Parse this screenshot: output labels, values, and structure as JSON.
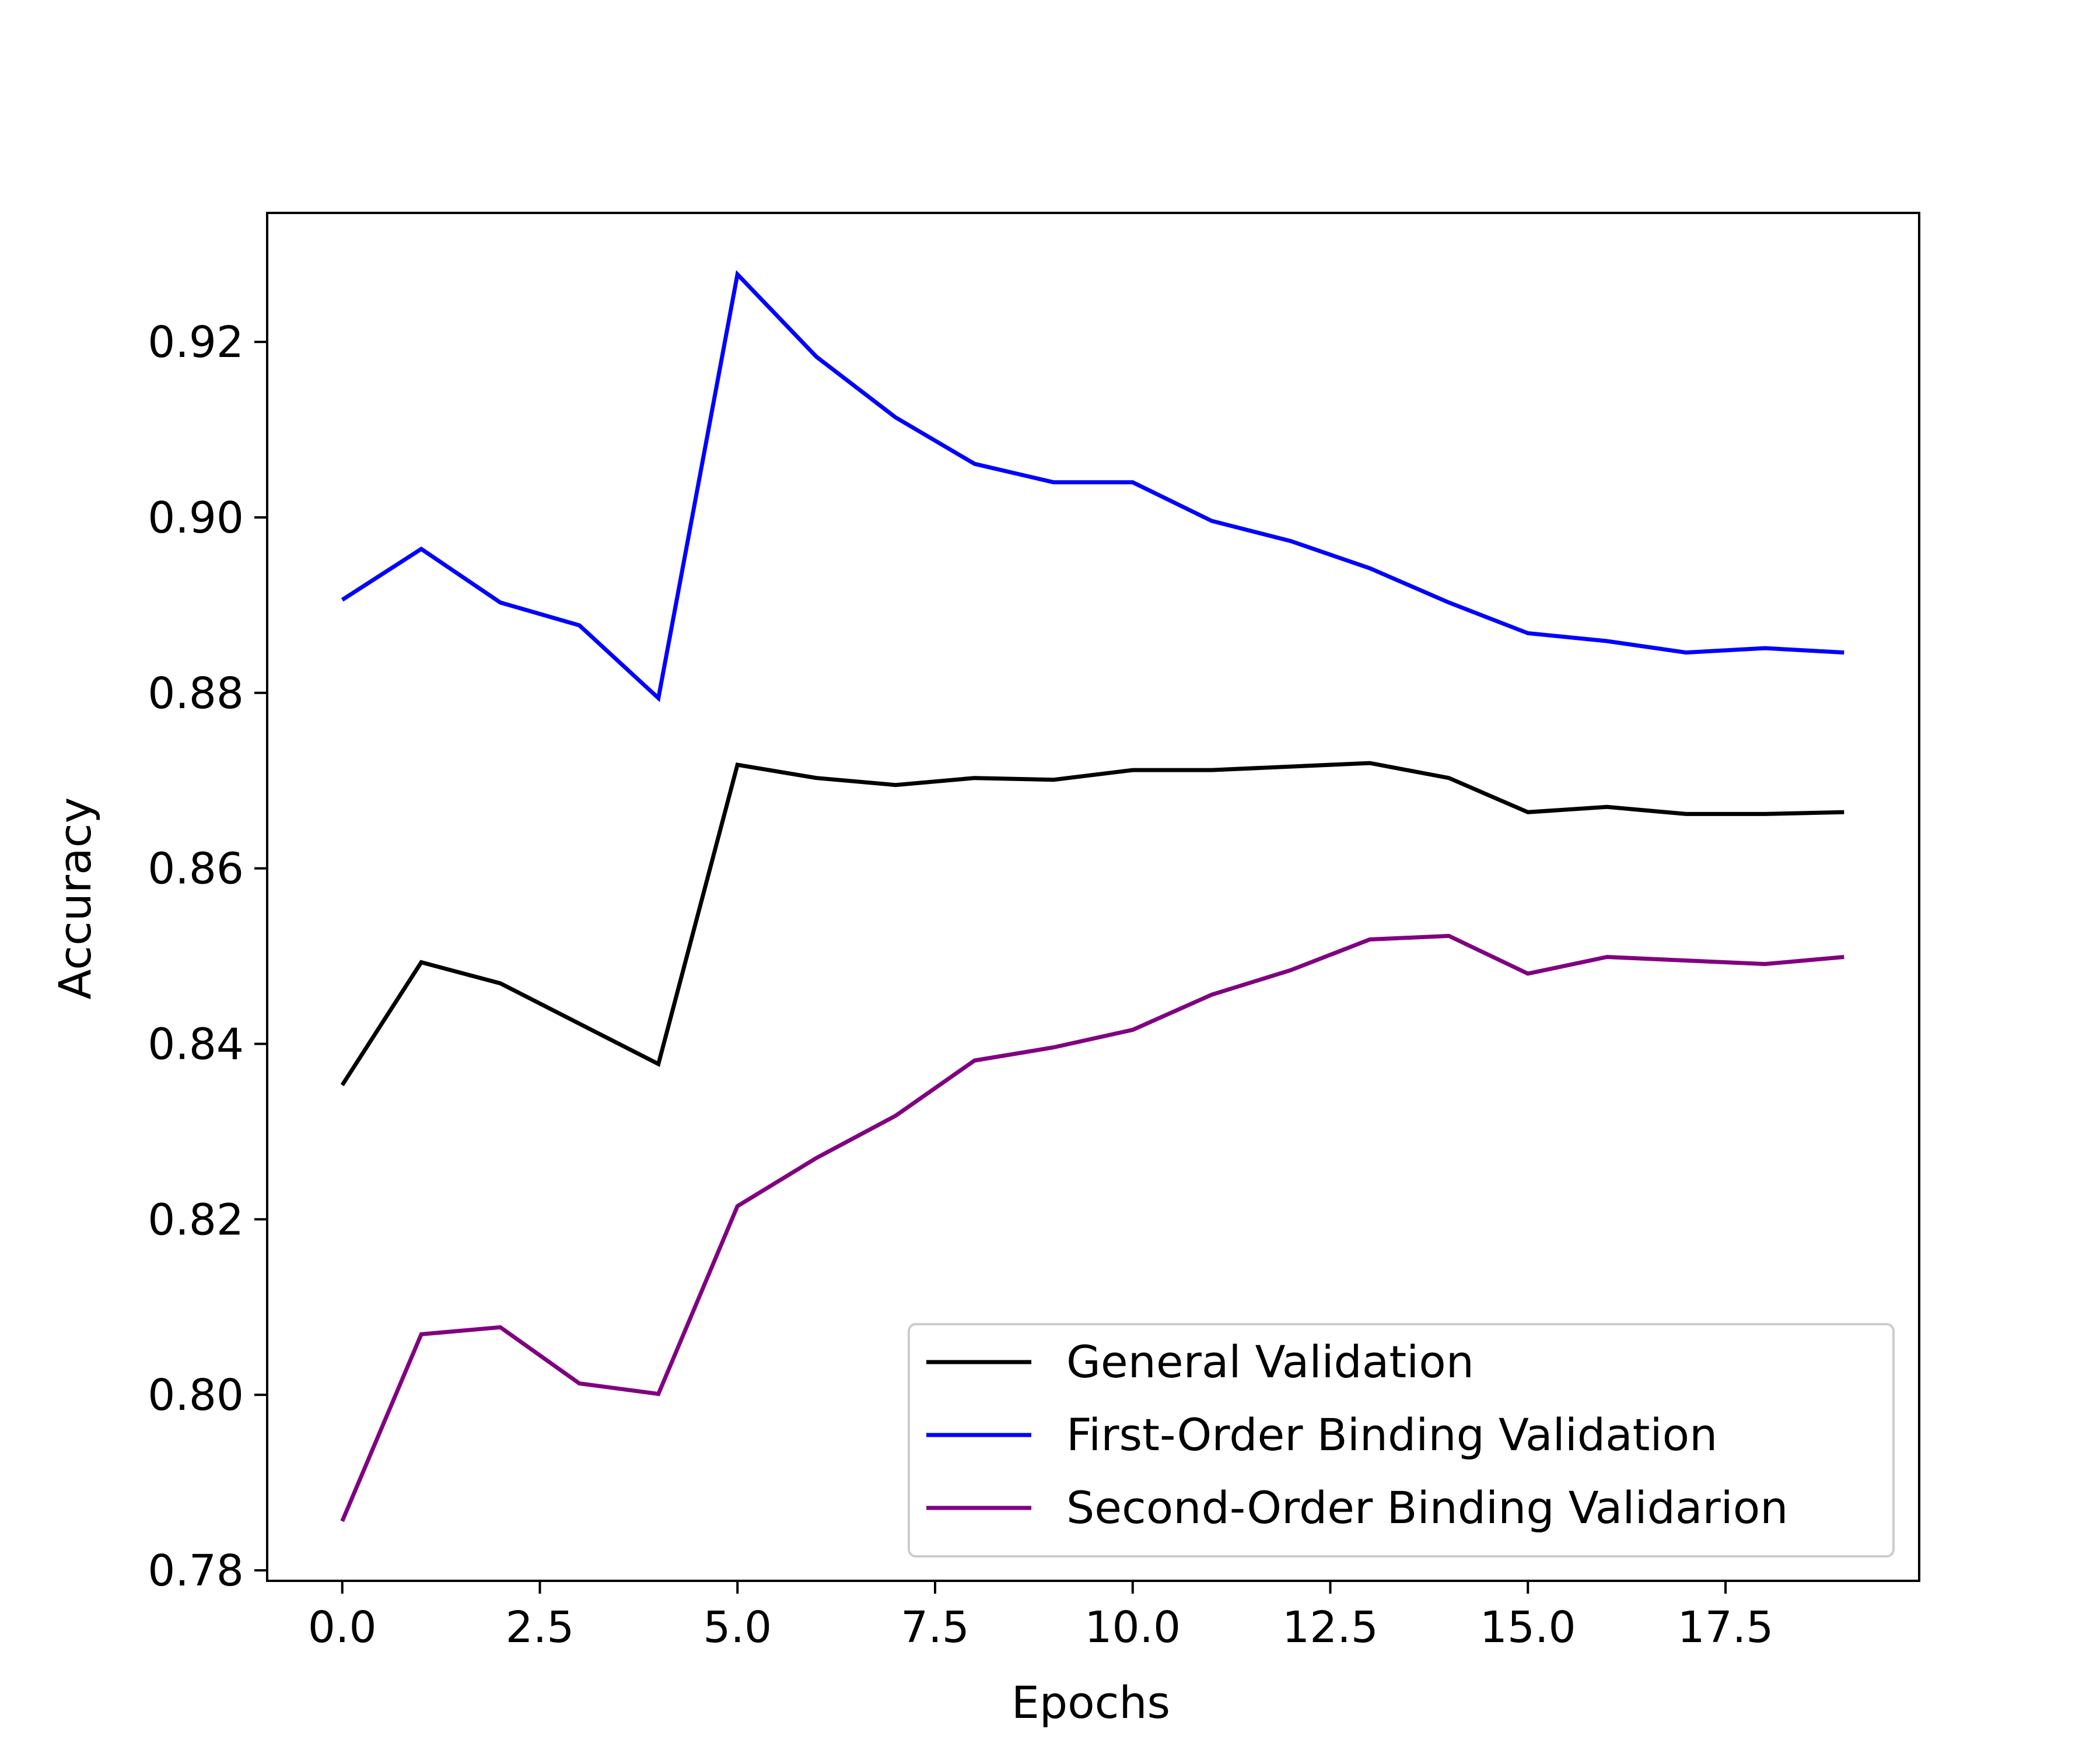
{
  "chart_data": {
    "type": "line",
    "title": "",
    "xlabel": "Epochs",
    "ylabel": "Accuracy",
    "xlim": [
      -0.95,
      19.95
    ],
    "ylim": [
      0.7788,
      0.9347
    ],
    "xticks": [
      0.0,
      2.5,
      5.0,
      7.5,
      10.0,
      12.5,
      15.0,
      17.5
    ],
    "xtick_labels": [
      "0.0",
      "2.5",
      "5.0",
      "7.5",
      "10.0",
      "12.5",
      "15.0",
      "17.5"
    ],
    "yticks": [
      0.78,
      0.8,
      0.82,
      0.84,
      0.86,
      0.88,
      0.9,
      0.92
    ],
    "ytick_labels": [
      "0.78",
      "0.80",
      "0.82",
      "0.84",
      "0.86",
      "0.88",
      "0.90",
      "0.92"
    ],
    "grid": false,
    "legend_position": "lower-right",
    "x": [
      0,
      1,
      2,
      3,
      4,
      5,
      6,
      7,
      8,
      9,
      10,
      11,
      12,
      13,
      14,
      15,
      16,
      17,
      18,
      19
    ],
    "series": [
      {
        "name": "General Validation",
        "color": "#000000",
        "values": [
          0.8353,
          0.8493,
          0.8469,
          0.8423,
          0.8377,
          0.8718,
          0.8703,
          0.8695,
          0.8703,
          0.8701,
          0.8712,
          0.8712,
          0.8716,
          0.872,
          0.8703,
          0.8664,
          0.867,
          0.8662,
          0.8662,
          0.8664
        ]
      },
      {
        "name": "First-Order Binding Validation",
        "color": "#0000ff",
        "values": [
          0.8906,
          0.8964,
          0.8903,
          0.8877,
          0.8794,
          0.9277,
          0.9183,
          0.9114,
          0.9061,
          0.904,
          0.904,
          0.8996,
          0.8973,
          0.8942,
          0.8903,
          0.8868,
          0.8859,
          0.8846,
          0.8851,
          0.8846
        ]
      },
      {
        "name": "Second-Order Binding Validarion",
        "color": "#800080",
        "values": [
          0.7856,
          0.8069,
          0.8077,
          0.8013,
          0.8001,
          0.8215,
          0.827,
          0.8318,
          0.8381,
          0.8396,
          0.8416,
          0.8456,
          0.8484,
          0.8519,
          0.8523,
          0.848,
          0.8499,
          0.8495,
          0.8491,
          0.8499
        ]
      }
    ]
  }
}
